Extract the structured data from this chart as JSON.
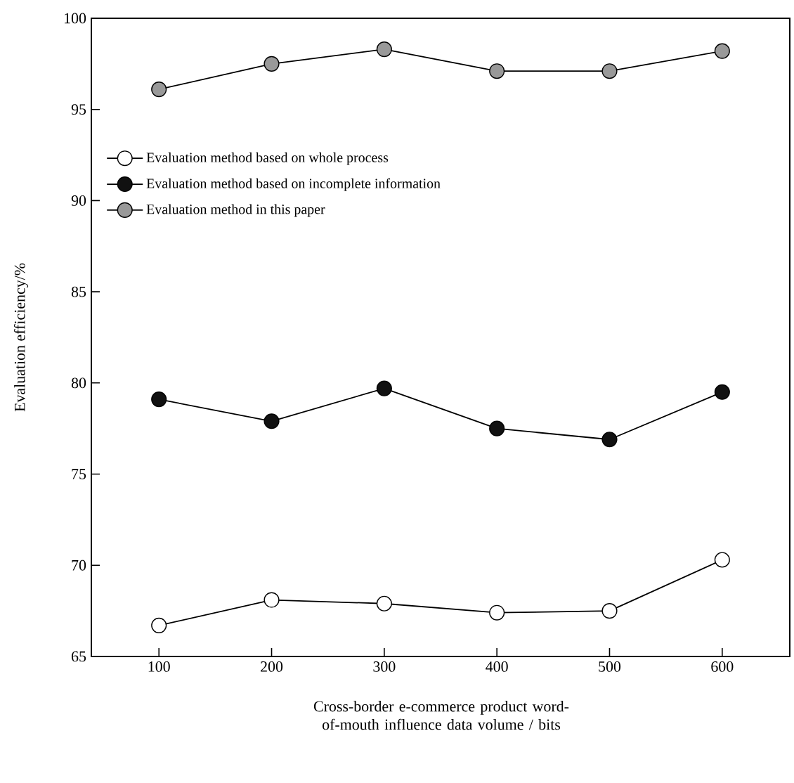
{
  "chart_data": {
    "type": "line",
    "xlabel": "Cross-border e-commerce product word-of-mouth influence data volume / bits",
    "ylabel": "Evaluation efficiency/%",
    "x": [
      100,
      200,
      300,
      400,
      500,
      600
    ],
    "series": [
      {
        "name": "Evaluation method based on whole process",
        "color": "#ffffff",
        "values": [
          66.7,
          68.1,
          67.9,
          67.4,
          67.5,
          70.3
        ]
      },
      {
        "name": "Evaluation method based on incomplete information",
        "color": "#111111",
        "values": [
          79.1,
          77.9,
          79.7,
          77.5,
          76.9,
          79.5
        ]
      },
      {
        "name": "Evaluation method in this paper",
        "color": "#999999",
        "values": [
          96.1,
          97.5,
          98.3,
          97.1,
          97.1,
          98.2
        ]
      }
    ],
    "xlim": [
      40,
      660
    ],
    "ylim": [
      65,
      100
    ],
    "xticks": [
      100,
      200,
      300,
      400,
      500,
      600
    ],
    "yticks": [
      65,
      70,
      75,
      80,
      85,
      90,
      95,
      100
    ],
    "legend": "left",
    "marker": "circle",
    "line_style": "solid",
    "grid": false
  }
}
